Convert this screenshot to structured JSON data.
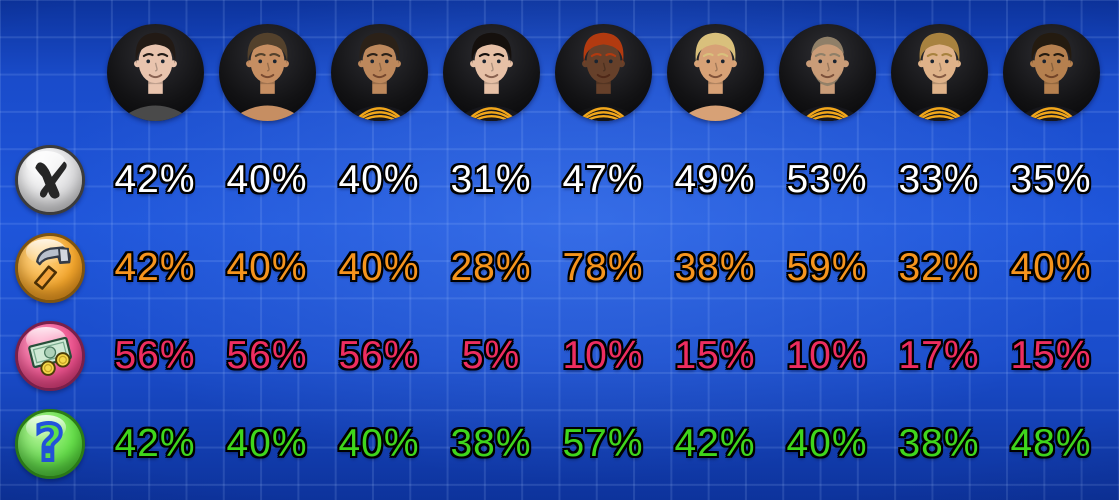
{
  "screen": {
    "name": "crew-skill-percentages",
    "background_color": "#1e55da",
    "grid_line_color": "rgba(173,203,255,0.15)"
  },
  "table": {
    "avatars": [
      {
        "id": "pale-dark-hair",
        "skin": "#e9c4ae",
        "hair": "#221a15",
        "shirt": "#4a4a4a",
        "uniform": false,
        "shirtless": false,
        "bald": false,
        "beard": false
      },
      {
        "id": "tan-messy-hair",
        "skin": "#c68e62",
        "hair": "#53412c",
        "shirt": "#c68e62",
        "uniform": false,
        "shirtless": true,
        "bald": false,
        "beard": false
      },
      {
        "id": "tan-buzz-cut",
        "skin": "#bd885c",
        "hair": "#2b2118",
        "shirt": "#17171c",
        "uniform": true,
        "shirtless": false,
        "bald": false,
        "beard": false
      },
      {
        "id": "pale-slick-hair",
        "skin": "#e6c0a6",
        "hair": "#15100d",
        "shirt": "#17171c",
        "uniform": true,
        "shirtless": false,
        "bald": false,
        "beard": false
      },
      {
        "id": "dark-red-dreads",
        "skin": "#66402a",
        "hair": "#b23a10",
        "shirt": "#141416",
        "uniform": true,
        "shirtless": false,
        "bald": false,
        "beard": false
      },
      {
        "id": "blond-shirtless",
        "skin": "#d7a176",
        "hair": "#d9c07c",
        "shirt": "#d7a176",
        "uniform": false,
        "shirtless": true,
        "bald": false,
        "beard": false
      },
      {
        "id": "bald-with-beard",
        "skin": "#c99c78",
        "hair": "#8f7f68",
        "shirt": "#17171c",
        "uniform": true,
        "shirtless": false,
        "bald": true,
        "beard": true
      },
      {
        "id": "light-brown-hair",
        "skin": "#dfb289",
        "hair": "#a8823f",
        "shirt": "#17171c",
        "uniform": true,
        "shirtless": false,
        "bald": false,
        "beard": false
      },
      {
        "id": "tan-dark-hair",
        "skin": "#b5804f",
        "hair": "#241b10",
        "shirt": "#17171c",
        "uniform": true,
        "shirtless": false,
        "bald": false,
        "beard": false
      }
    ],
    "rows": [
      {
        "id": "combat",
        "icon": "scissors-icon",
        "color": "#ffffff",
        "values": [
          "42%",
          "40%",
          "40%",
          "31%",
          "47%",
          "49%",
          "53%",
          "33%",
          "35%"
        ]
      },
      {
        "id": "build",
        "icon": "hammer-icon",
        "color": "#f6941d",
        "values": [
          "42%",
          "40%",
          "40%",
          "28%",
          "78%",
          "38%",
          "59%",
          "32%",
          "40%"
        ]
      },
      {
        "id": "money",
        "icon": "money-icon",
        "color": "#ee2d60",
        "values": [
          "56%",
          "56%",
          "56%",
          "5%",
          "10%",
          "15%",
          "10%",
          "17%",
          "15%"
        ]
      },
      {
        "id": "unknown",
        "icon": "question-icon",
        "color": "#3fd61c",
        "values": [
          "42%",
          "40%",
          "40%",
          "38%",
          "57%",
          "42%",
          "40%",
          "38%",
          "48%"
        ]
      }
    ],
    "question_mark_glyph": "?"
  }
}
